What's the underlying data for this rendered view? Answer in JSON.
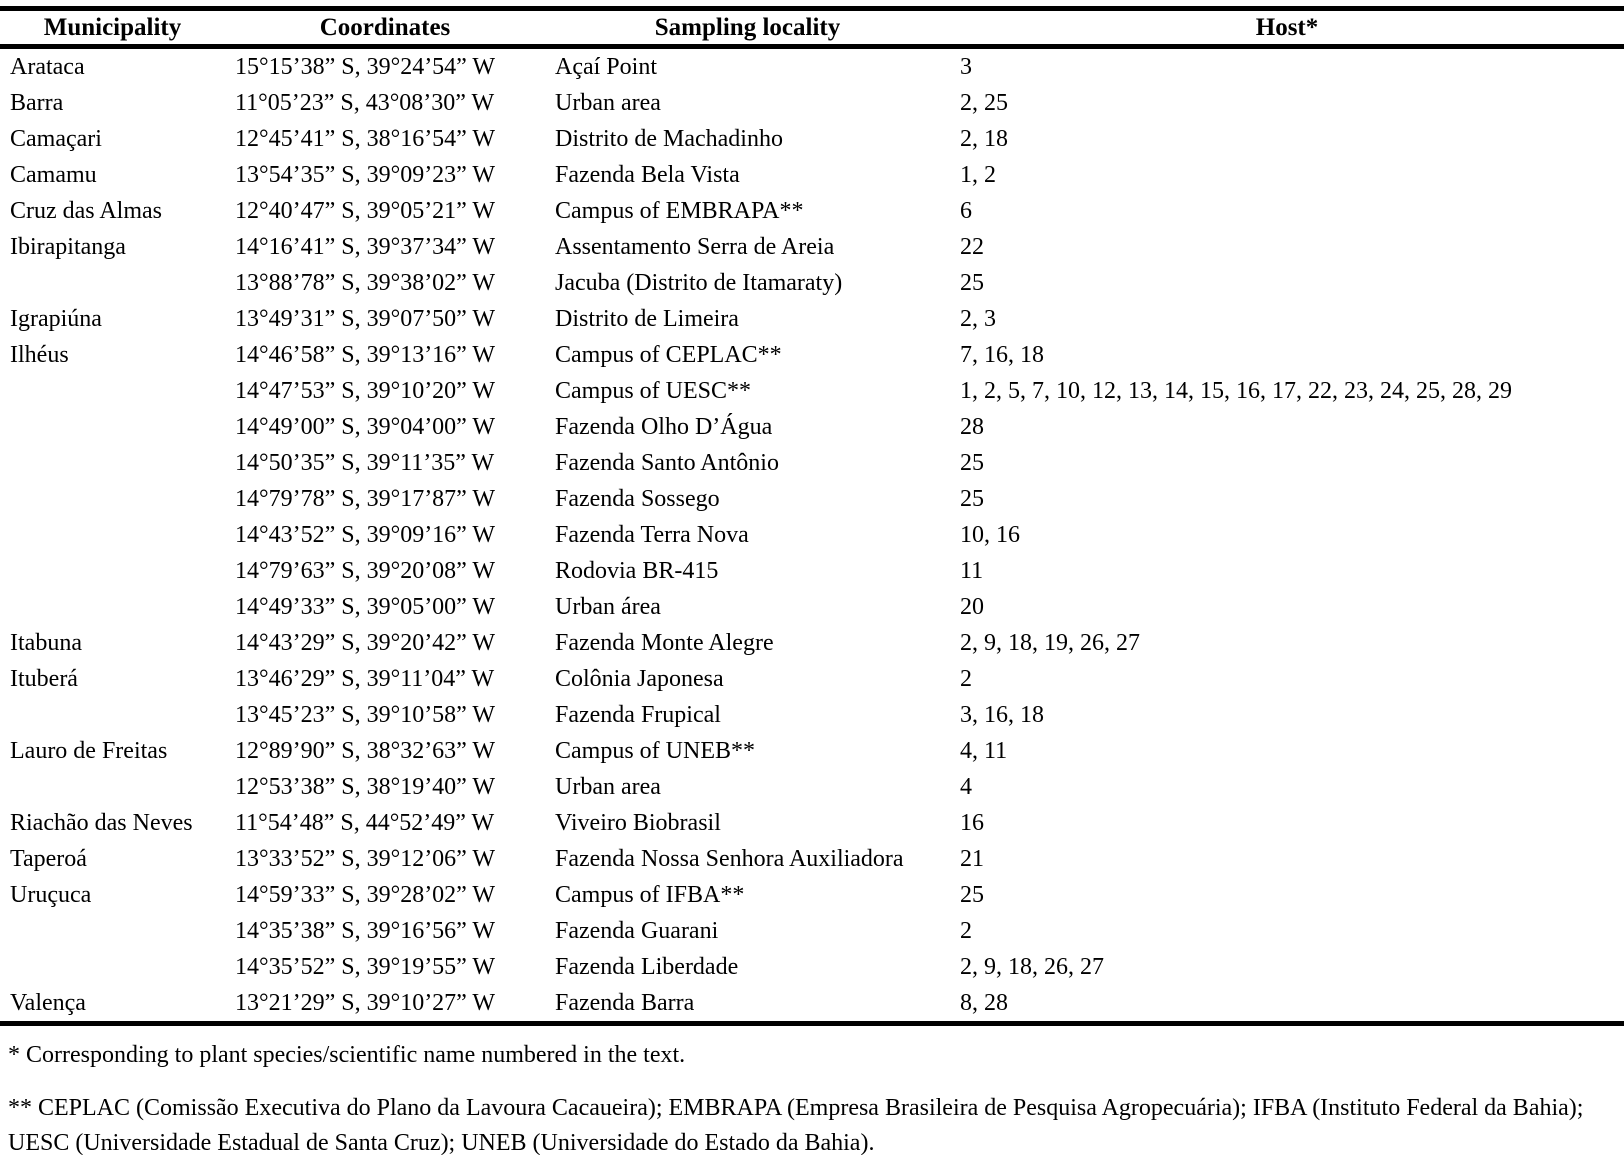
{
  "table": {
    "headers": [
      "Municipality",
      "Coordinates",
      "Sampling locality",
      "Host*"
    ],
    "rows": [
      {
        "municipality": "Arataca",
        "coordinates": "15°15’38” S, 39°24’54” W",
        "locality": "Açaí Point",
        "host": "3"
      },
      {
        "municipality": "Barra",
        "coordinates": "11°05’23” S, 43°08’30” W",
        "locality": "Urban area",
        "host": "2, 25"
      },
      {
        "municipality": "Camaçari",
        "coordinates": "12°45’41” S, 38°16’54” W",
        "locality": "Distrito de Machadinho",
        "host": "2, 18"
      },
      {
        "municipality": "Camamu",
        "coordinates": "13°54’35” S, 39°09’23” W",
        "locality": "Fazenda Bela Vista",
        "host": "1, 2"
      },
      {
        "municipality": "Cruz das Almas",
        "coordinates": "12°40’47” S, 39°05’21” W",
        "locality": "Campus of EMBRAPA**",
        "host": "6"
      },
      {
        "municipality": "Ibirapitanga",
        "coordinates": "14°16’41” S, 39°37’34” W",
        "locality": "Assentamento Serra de Areia",
        "host": "22"
      },
      {
        "municipality": "",
        "coordinates": "13°88’78” S, 39°38’02” W",
        "locality": "Jacuba (Distrito de Itamaraty)",
        "host": "25"
      },
      {
        "municipality": "Igrapiúna",
        "coordinates": "13°49’31” S, 39°07’50” W",
        "locality": "Distrito de Limeira",
        "host": "2, 3"
      },
      {
        "municipality": "Ilhéus",
        "coordinates": "14°46’58” S, 39°13’16” W",
        "locality": "Campus of CEPLAC**",
        "host": "7, 16, 18"
      },
      {
        "municipality": "",
        "coordinates": "14°47’53” S, 39°10’20” W",
        "locality": "Campus of UESC**",
        "host": "1, 2, 5, 7, 10, 12, 13, 14, 15, 16, 17, 22, 23, 24, 25, 28, 29"
      },
      {
        "municipality": "",
        "coordinates": "14°49’00” S, 39°04’00” W",
        "locality": "Fazenda Olho D’Água",
        "host": "28"
      },
      {
        "municipality": "",
        "coordinates": "14°50’35” S, 39°11’35” W",
        "locality": "Fazenda Santo Antônio",
        "host": "25"
      },
      {
        "municipality": "",
        "coordinates": "14°79’78” S, 39°17’87” W",
        "locality": "Fazenda Sossego",
        "host": "25"
      },
      {
        "municipality": "",
        "coordinates": "14°43’52” S, 39°09’16” W",
        "locality": "Fazenda Terra Nova",
        "host": "10, 16"
      },
      {
        "municipality": "",
        "coordinates": "14°79’63” S, 39°20’08” W",
        "locality": "Rodovia BR-415",
        "host": "11"
      },
      {
        "municipality": "",
        "coordinates": "14°49’33” S, 39°05’00” W",
        "locality": "Urban área",
        "host": "20"
      },
      {
        "municipality": "Itabuna",
        "coordinates": "14°43’29” S, 39°20’42” W",
        "locality": "Fazenda Monte Alegre",
        "host": "2, 9, 18, 19, 26, 27"
      },
      {
        "municipality": "Ituberá",
        "coordinates": "13°46’29” S, 39°11’04” W",
        "locality": "Colônia Japonesa",
        "host": "2"
      },
      {
        "municipality": "",
        "coordinates": "13°45’23” S, 39°10’58” W",
        "locality": "Fazenda Frupical",
        "host": "3, 16, 18"
      },
      {
        "municipality": "Lauro de Freitas",
        "coordinates": "12°89’90” S, 38°32’63” W",
        "locality": "Campus of UNEB**",
        "host": "4, 11"
      },
      {
        "municipality": "",
        "coordinates": "12°53’38” S, 38°19’40” W",
        "locality": "Urban area",
        "host": "4"
      },
      {
        "municipality": "Riachão das Neves",
        "coordinates": "11°54’48” S, 44°52’49” W",
        "locality": "Viveiro Biobrasil",
        "host": "16"
      },
      {
        "municipality": "Taperoá",
        "coordinates": "13°33’52” S, 39°12’06” W",
        "locality": "Fazenda Nossa Senhora Auxiliadora",
        "host": "21"
      },
      {
        "municipality": "Uruçuca",
        "coordinates": "14°59’33” S, 39°28’02” W",
        "locality": "Campus of IFBA**",
        "host": "25"
      },
      {
        "municipality": "",
        "coordinates": "14°35’38” S, 39°16’56” W",
        "locality": "Fazenda Guarani",
        "host": "2"
      },
      {
        "municipality": "",
        "coordinates": "14°35’52” S, 39°19’55” W",
        "locality": "Fazenda Liberdade",
        "host": "2, 9, 18, 26, 27"
      },
      {
        "municipality": "Valença",
        "coordinates": "13°21’29” S, 39°10’27” W",
        "locality": "Fazenda Barra",
        "host": "8, 28"
      }
    ]
  },
  "footnotes": {
    "host_note": "* Corresponding to plant species/scientific name numbered in the text.",
    "institutions_note": "** CEPLAC (Comissão Executiva do Plano da Lavoura Cacaueira); EMBRAPA (Empresa Brasileira de Pesquisa Agropecuária); IFBA (Instituto Federal da Bahia); UESC (Universidade Estadual de Santa Cruz); UNEB (Universidade do Estado da Bahia)."
  }
}
